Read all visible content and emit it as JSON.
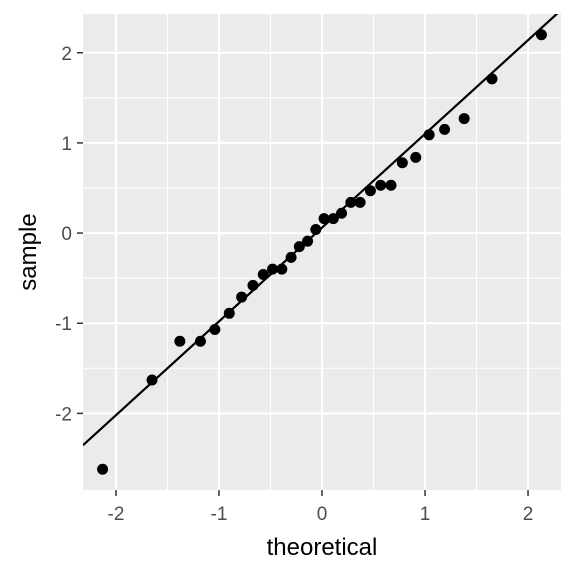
{
  "chart_data": {
    "type": "scatter",
    "title": "",
    "xlabel": "theoretical",
    "ylabel": "sample",
    "xlim": [
      -2.32,
      2.32
    ],
    "ylim": [
      -2.85,
      2.43
    ],
    "xticks": [
      -2,
      -1,
      0,
      1,
      2
    ],
    "yticks": [
      -2,
      -1,
      0,
      1,
      2
    ],
    "xtick_labels": [
      "-2",
      "-1",
      "0",
      "1",
      "2"
    ],
    "ytick_labels": [
      "-2",
      "-1",
      "0",
      "1",
      "2"
    ],
    "grid": true,
    "legend": "none",
    "colors": {
      "panel": "#ebebeb",
      "grid": "#ffffff",
      "points": "#000000",
      "line": "#000000",
      "tick_text": "#4d4d4d"
    },
    "points": {
      "x": [
        -2.13,
        -1.65,
        -1.38,
        -1.18,
        -1.04,
        -0.9,
        -0.78,
        -0.67,
        -0.57,
        -0.48,
        -0.39,
        -0.3,
        -0.22,
        -0.14,
        -0.06,
        0.02,
        0.11,
        0.19,
        0.28,
        0.37,
        0.47,
        0.57,
        0.67,
        0.78,
        0.91,
        1.04,
        1.19,
        1.38,
        1.65,
        2.13
      ],
      "y": [
        -2.62,
        -1.63,
        -1.2,
        -1.2,
        -1.07,
        -0.89,
        -0.71,
        -0.58,
        -0.46,
        -0.4,
        -0.4,
        -0.27,
        -0.15,
        -0.09,
        0.04,
        0.16,
        0.16,
        0.22,
        0.34,
        0.34,
        0.47,
        0.53,
        0.53,
        0.78,
        0.84,
        1.09,
        1.15,
        1.27,
        1.71,
        2.2
      ]
    },
    "reference_line": {
      "intercept": 0.06,
      "slope": 1.04
    }
  }
}
